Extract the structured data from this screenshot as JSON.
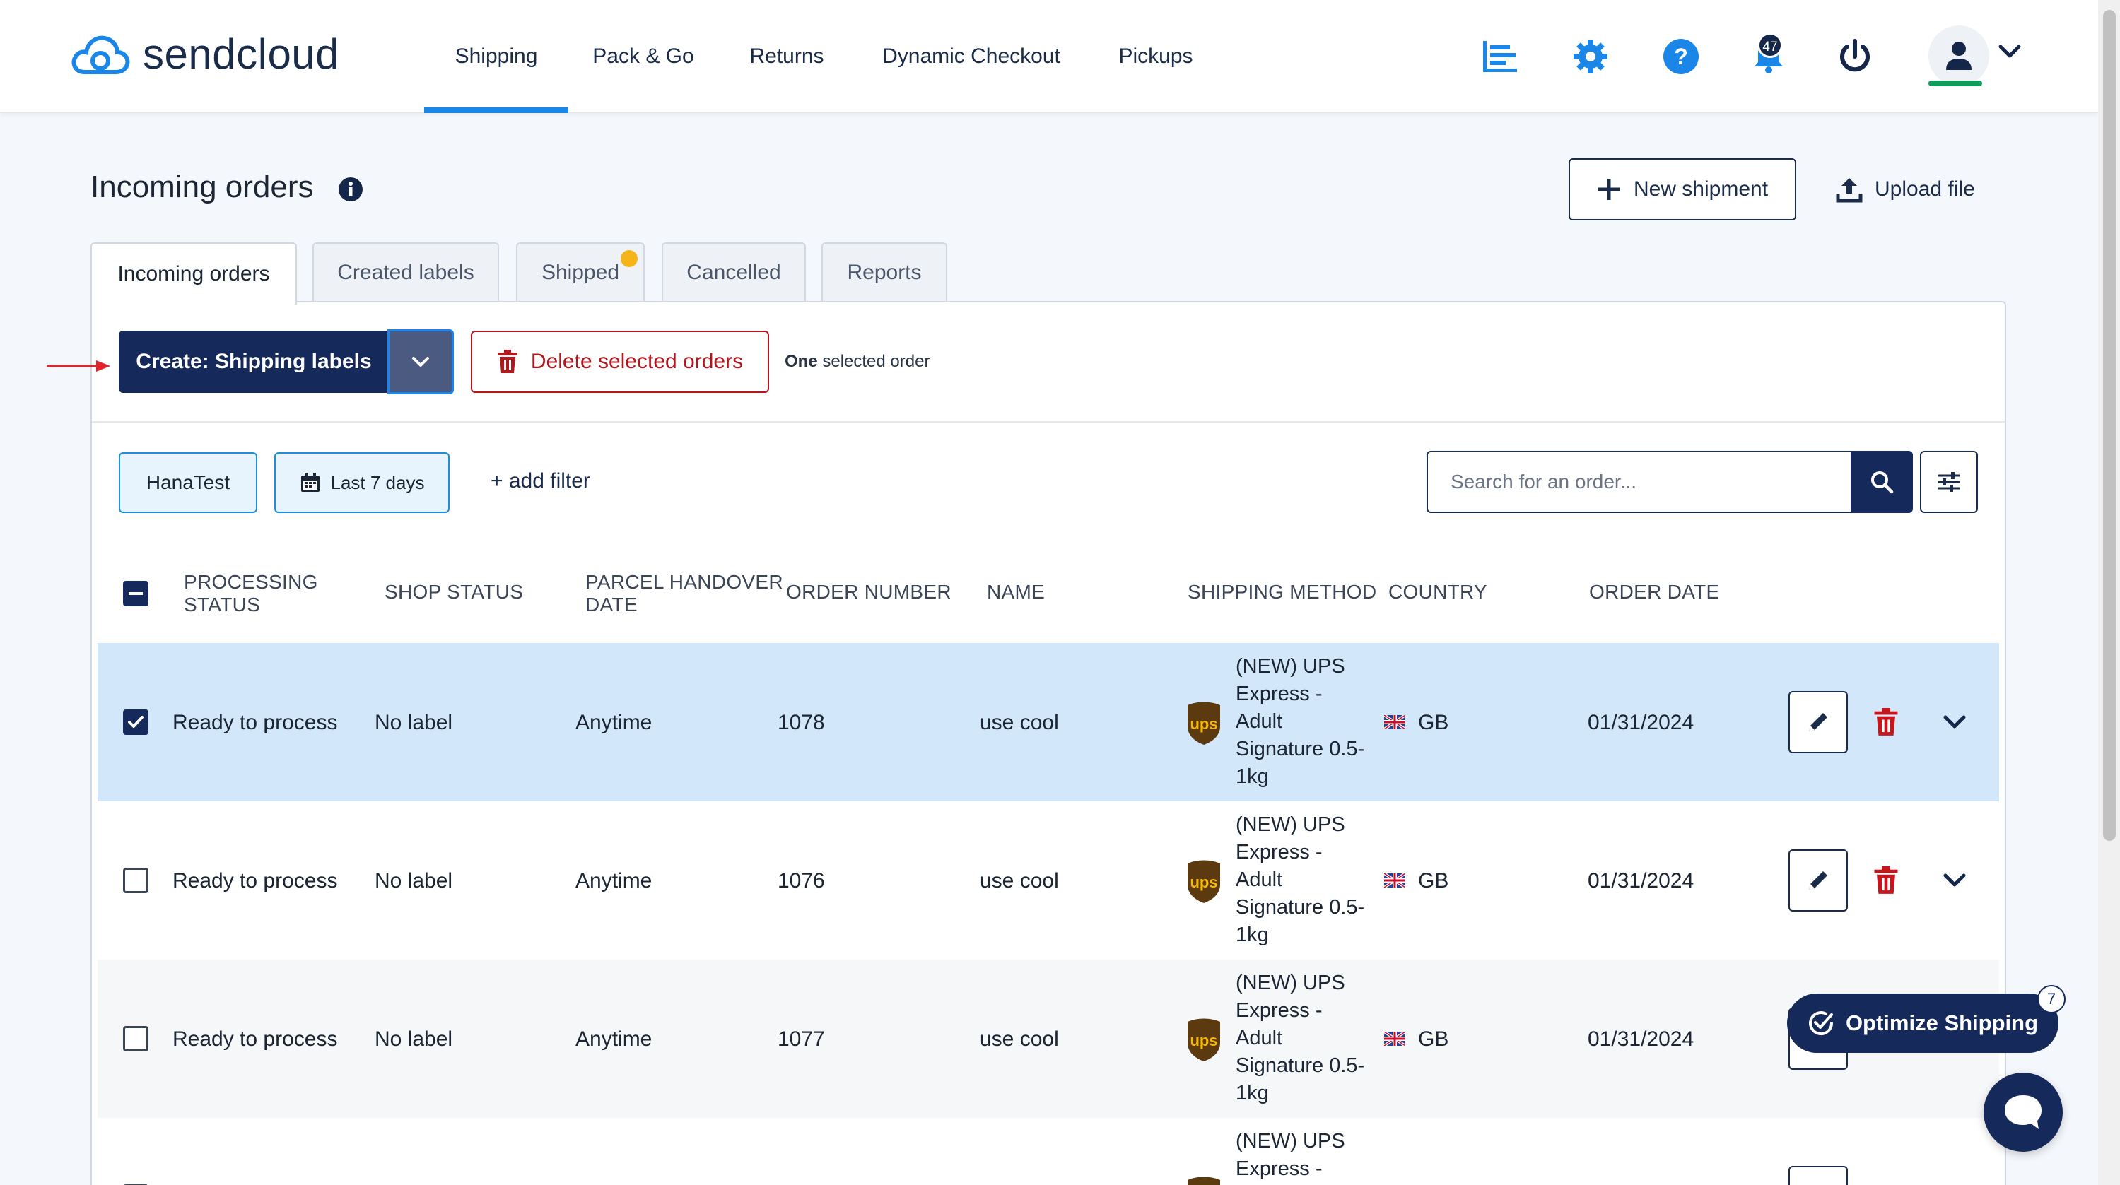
{
  "brand": {
    "name": "sendcloud",
    "accent": "#1a86e8",
    "navy": "#15295a",
    "danger": "#b3161c"
  },
  "nav": {
    "items": [
      "Shipping",
      "Pack & Go",
      "Returns",
      "Dynamic Checkout",
      "Pickups"
    ],
    "notifications_count": "47",
    "icons": [
      "analytics-icon",
      "gear-icon",
      "help-icon",
      "bell-icon",
      "power-icon",
      "user-icon"
    ]
  },
  "header": {
    "title": "Incoming orders",
    "new_shipment": "New shipment",
    "upload_file": "Upload file"
  },
  "tabs": [
    "Incoming orders",
    "Created labels",
    "Shipped",
    "Cancelled",
    "Reports"
  ],
  "actions": {
    "create_label": "Create: Shipping labels",
    "delete_label": "Delete selected orders",
    "selection_count_bold": "One",
    "selection_count_rest": " selected order"
  },
  "filters": {
    "shop": "HanaTest",
    "date": "Last 7 days",
    "add_filter": "+ add filter",
    "search_placeholder": "Search for an order..."
  },
  "table": {
    "columns": {
      "processing_status": "PROCESSING STATUS",
      "shop_status": "SHOP STATUS",
      "parcel_handover": "PARCEL HANDOVER DATE",
      "order_number": "ORDER NUMBER",
      "name": "NAME",
      "shipping_method": "SHIPPING METHOD",
      "country": "COUNTRY",
      "order_date": "ORDER DATE"
    },
    "rows": [
      {
        "status": "Ready to process",
        "shop_status": "No label",
        "handover": "Anytime",
        "order_number": "1078",
        "name": "use cool",
        "method_lines": [
          "(NEW) UPS",
          "Express -",
          "Adult",
          "Signature 0.5-",
          "1kg"
        ],
        "country": "GB",
        "date": "01/31/2024",
        "selected": true
      },
      {
        "status": "Ready to process",
        "shop_status": "No label",
        "handover": "Anytime",
        "order_number": "1076",
        "name": "use cool",
        "method_lines": [
          "(NEW) UPS",
          "Express -",
          "Adult",
          "Signature 0.5-",
          "1kg"
        ],
        "country": "GB",
        "date": "01/31/2024",
        "selected": false
      },
      {
        "status": "Ready to process",
        "shop_status": "No label",
        "handover": "Anytime",
        "order_number": "1077",
        "name": "use cool",
        "method_lines": [
          "(NEW) UPS",
          "Express -",
          "Adult",
          "Signature 0.5-",
          "1kg"
        ],
        "country": "GB",
        "date": "01/31/2024",
        "selected": false
      },
      {
        "status": "",
        "shop_status": "",
        "handover": "",
        "order_number": "",
        "name": "",
        "method_lines": [
          "(NEW) UPS",
          "Express -"
        ],
        "country": "",
        "date": "",
        "selected": false
      }
    ],
    "carrier_logo_text": "ups"
  },
  "floating": {
    "optimize_label": "Optimize Shipping",
    "optimize_badge": "7"
  }
}
